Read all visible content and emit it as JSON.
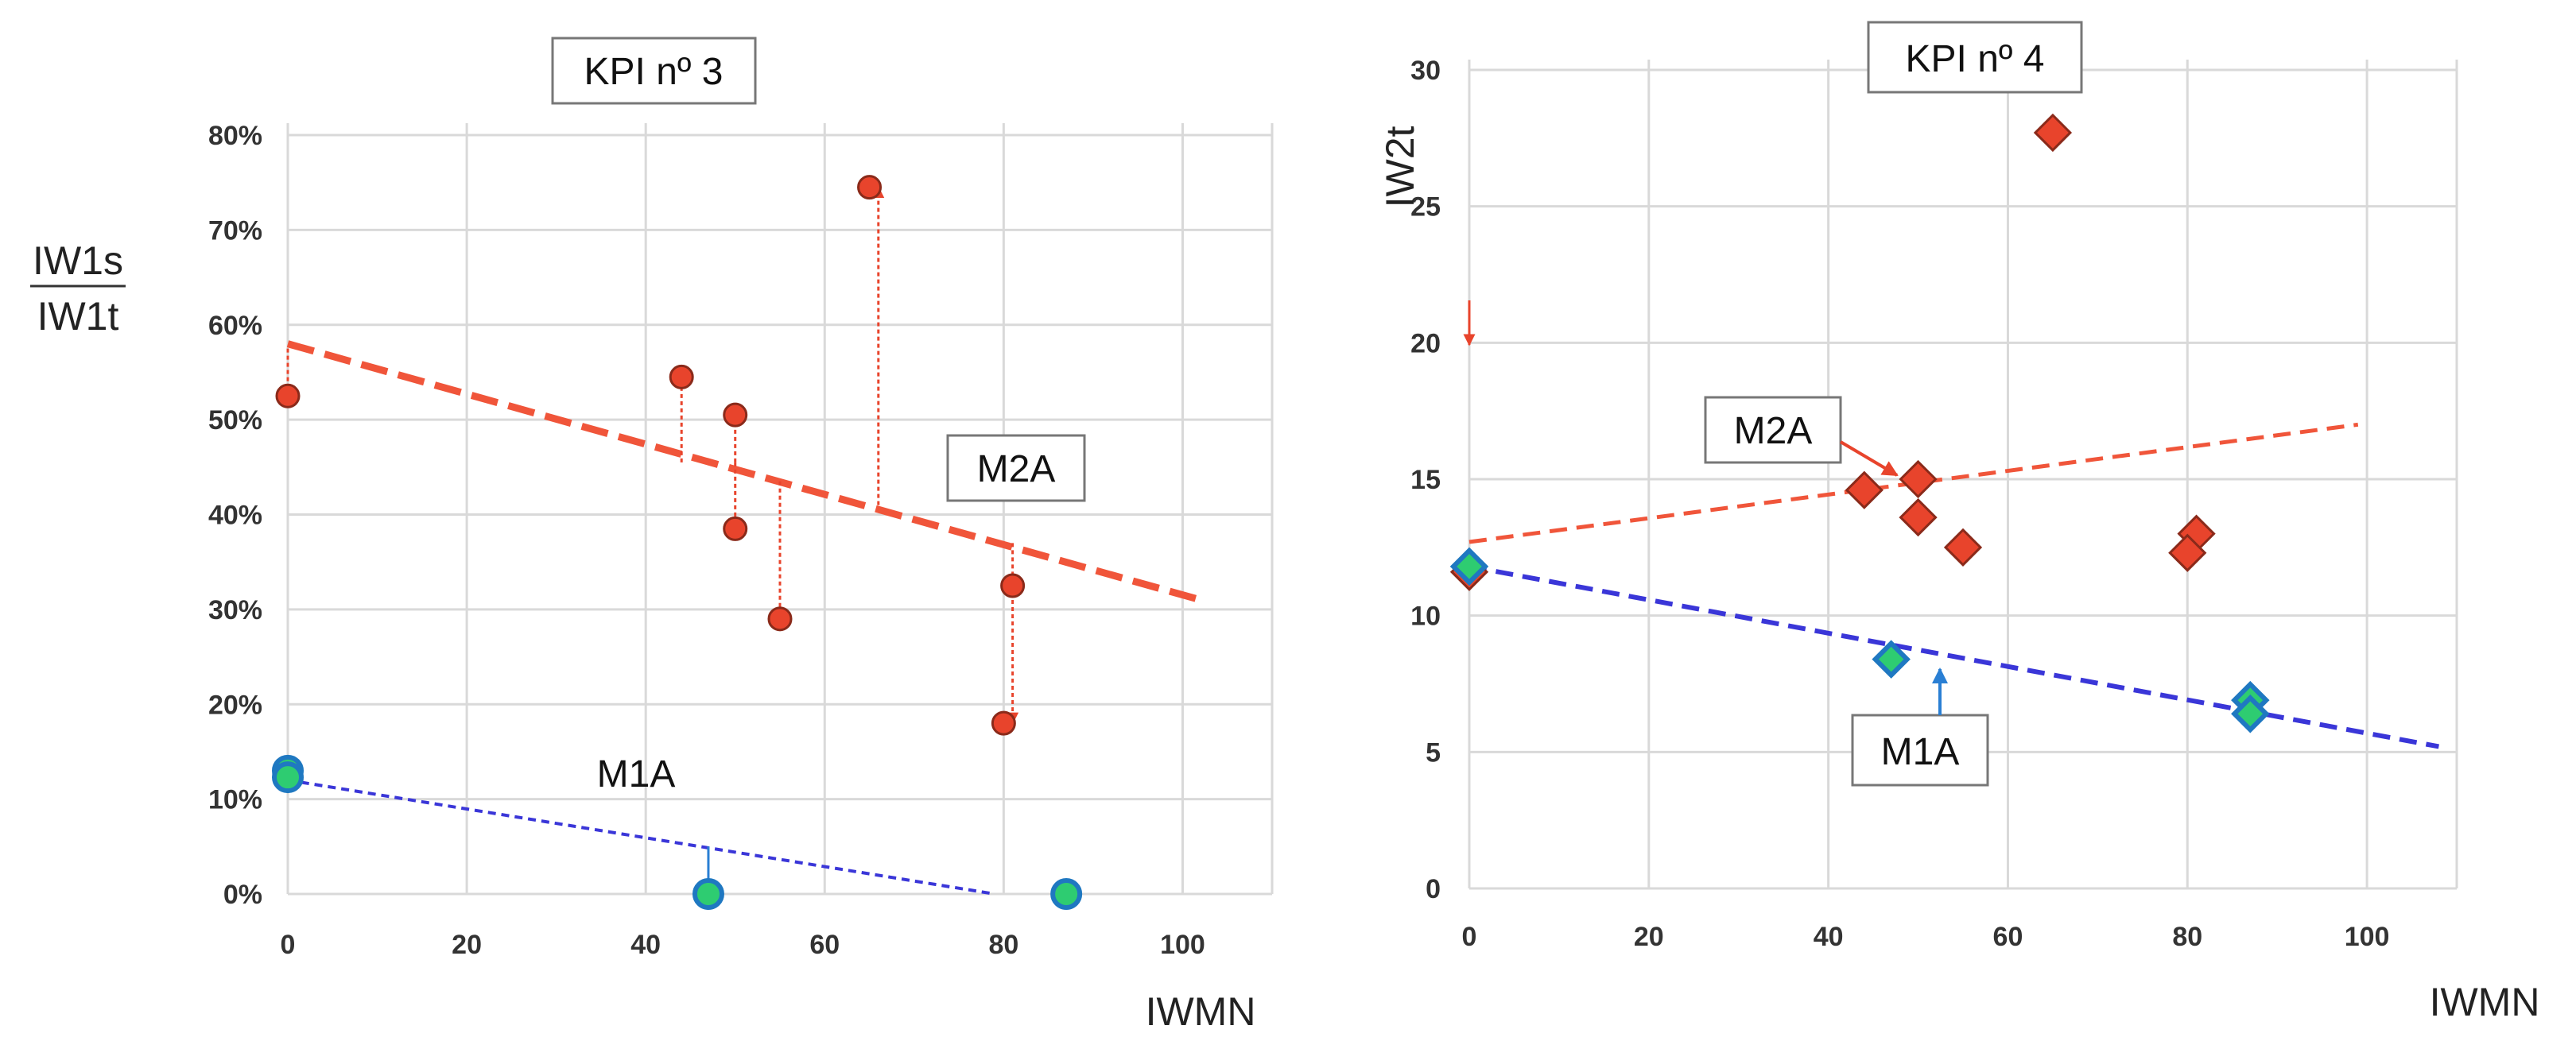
{
  "chart_data": [
    {
      "type": "scatter",
      "title": "KPI nº 3",
      "xlabel": "IWMN",
      "ylabel_numerator": "IW1s",
      "ylabel_denominator": "IW1t",
      "xlim": [
        0,
        110
      ],
      "ylim": [
        0,
        0.8
      ],
      "xticks": [
        "0",
        "20",
        "40",
        "60",
        "80",
        "100"
      ],
      "yticks": [
        "0%",
        "10%",
        "20%",
        "30%",
        "40%",
        "50%",
        "60%",
        "70%",
        "80%"
      ],
      "series": [
        {
          "name": "M2A",
          "marker": "circle",
          "color": "#e8442c",
          "points": [
            [
              0,
              0.525
            ],
            [
              44,
              0.545
            ],
            [
              50,
              0.505
            ],
            [
              50,
              0.385
            ],
            [
              55,
              0.29
            ],
            [
              65,
              0.745
            ],
            [
              81,
              0.325
            ],
            [
              80,
              0.18
            ]
          ],
          "trend": [
            [
              0,
              0.58
            ],
            [
              102,
              0.31
            ]
          ],
          "residual_arrows": [
            [
              0,
              0.575,
              0.525
            ],
            [
              44,
              0.455,
              0.545
            ],
            [
              50,
              0.455,
              0.505
            ],
            [
              50,
              0.455,
              0.385
            ],
            [
              55,
              0.435,
              0.29
            ],
            [
              66,
              0.41,
              0.745
            ],
            [
              81,
              0.37,
              0.325
            ],
            [
              81,
              0.325,
              0.18
            ]
          ]
        },
        {
          "name": "M1A",
          "marker": "circle",
          "color": "#2ecc71",
          "edge_color": "#1f78c1",
          "points": [
            [
              0,
              0.13
            ],
            [
              0,
              0.123
            ],
            [
              47,
              0.0
            ],
            [
              87,
              0.0
            ]
          ],
          "trend": [
            [
              0,
              0.12
            ],
            [
              79,
              0.0
            ]
          ],
          "residual_arrows": [
            [
              47,
              0.05,
              0.0
            ]
          ]
        }
      ],
      "annotations": [
        "M2A",
        "M1A"
      ]
    },
    {
      "type": "scatter",
      "title": "KPI nº 4",
      "xlabel": "IWMN",
      "ylabel": "IW2t",
      "xlim": [
        0,
        110
      ],
      "ylim": [
        0,
        30
      ],
      "xticks": [
        "0",
        "20",
        "40",
        "60",
        "80",
        "100"
      ],
      "yticks": [
        "0",
        "5",
        "10",
        "15",
        "20",
        "25",
        "30"
      ],
      "series": [
        {
          "name": "M2A",
          "marker": "diamond",
          "color": "#e8442c",
          "points": [
            [
              0,
              11.6
            ],
            [
              44,
              14.6
            ],
            [
              50,
              15.0
            ],
            [
              50,
              13.6
            ],
            [
              55,
              12.5
            ],
            [
              65,
              27.7
            ],
            [
              81,
              13.0
            ],
            [
              80,
              12.3
            ]
          ],
          "trend": [
            [
              0,
              12.7
            ],
            [
              99,
              17.0
            ]
          ]
        },
        {
          "name": "M1A",
          "marker": "diamond",
          "color": "#2ecc71",
          "edge_color": "#1f78c1",
          "points": [
            [
              0,
              11.8
            ],
            [
              47,
              8.4
            ],
            [
              87,
              6.9
            ],
            [
              87,
              6.4
            ]
          ],
          "trend": [
            [
              0,
              11.8
            ],
            [
              108,
              5.2
            ]
          ]
        }
      ],
      "annotations": [
        "M2A",
        "M1A"
      ]
    }
  ]
}
